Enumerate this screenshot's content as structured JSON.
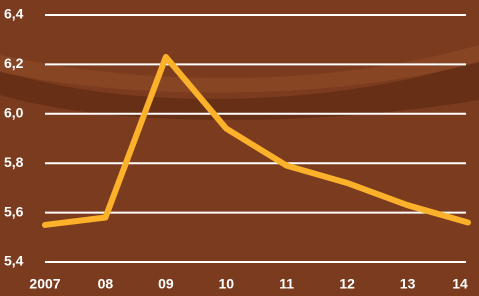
{
  "chart_data": {
    "type": "line",
    "categories": [
      "2007",
      "08",
      "09",
      "10",
      "11",
      "12",
      "13",
      "14"
    ],
    "values": [
      5.55,
      5.58,
      6.23,
      5.94,
      5.79,
      5.72,
      5.63,
      5.56
    ],
    "color": "#fbb12a",
    "ylim": [
      5.4,
      6.4
    ],
    "yticks": [
      {
        "value": 5.4,
        "label": "5,4"
      },
      {
        "value": 5.6,
        "label": "5,6"
      },
      {
        "value": 5.8,
        "label": "5,8"
      },
      {
        "value": 6.0,
        "label": "6,0"
      },
      {
        "value": 6.2,
        "label": "6,2"
      },
      {
        "value": 6.4,
        "label": "6,4"
      }
    ],
    "grid": true
  }
}
